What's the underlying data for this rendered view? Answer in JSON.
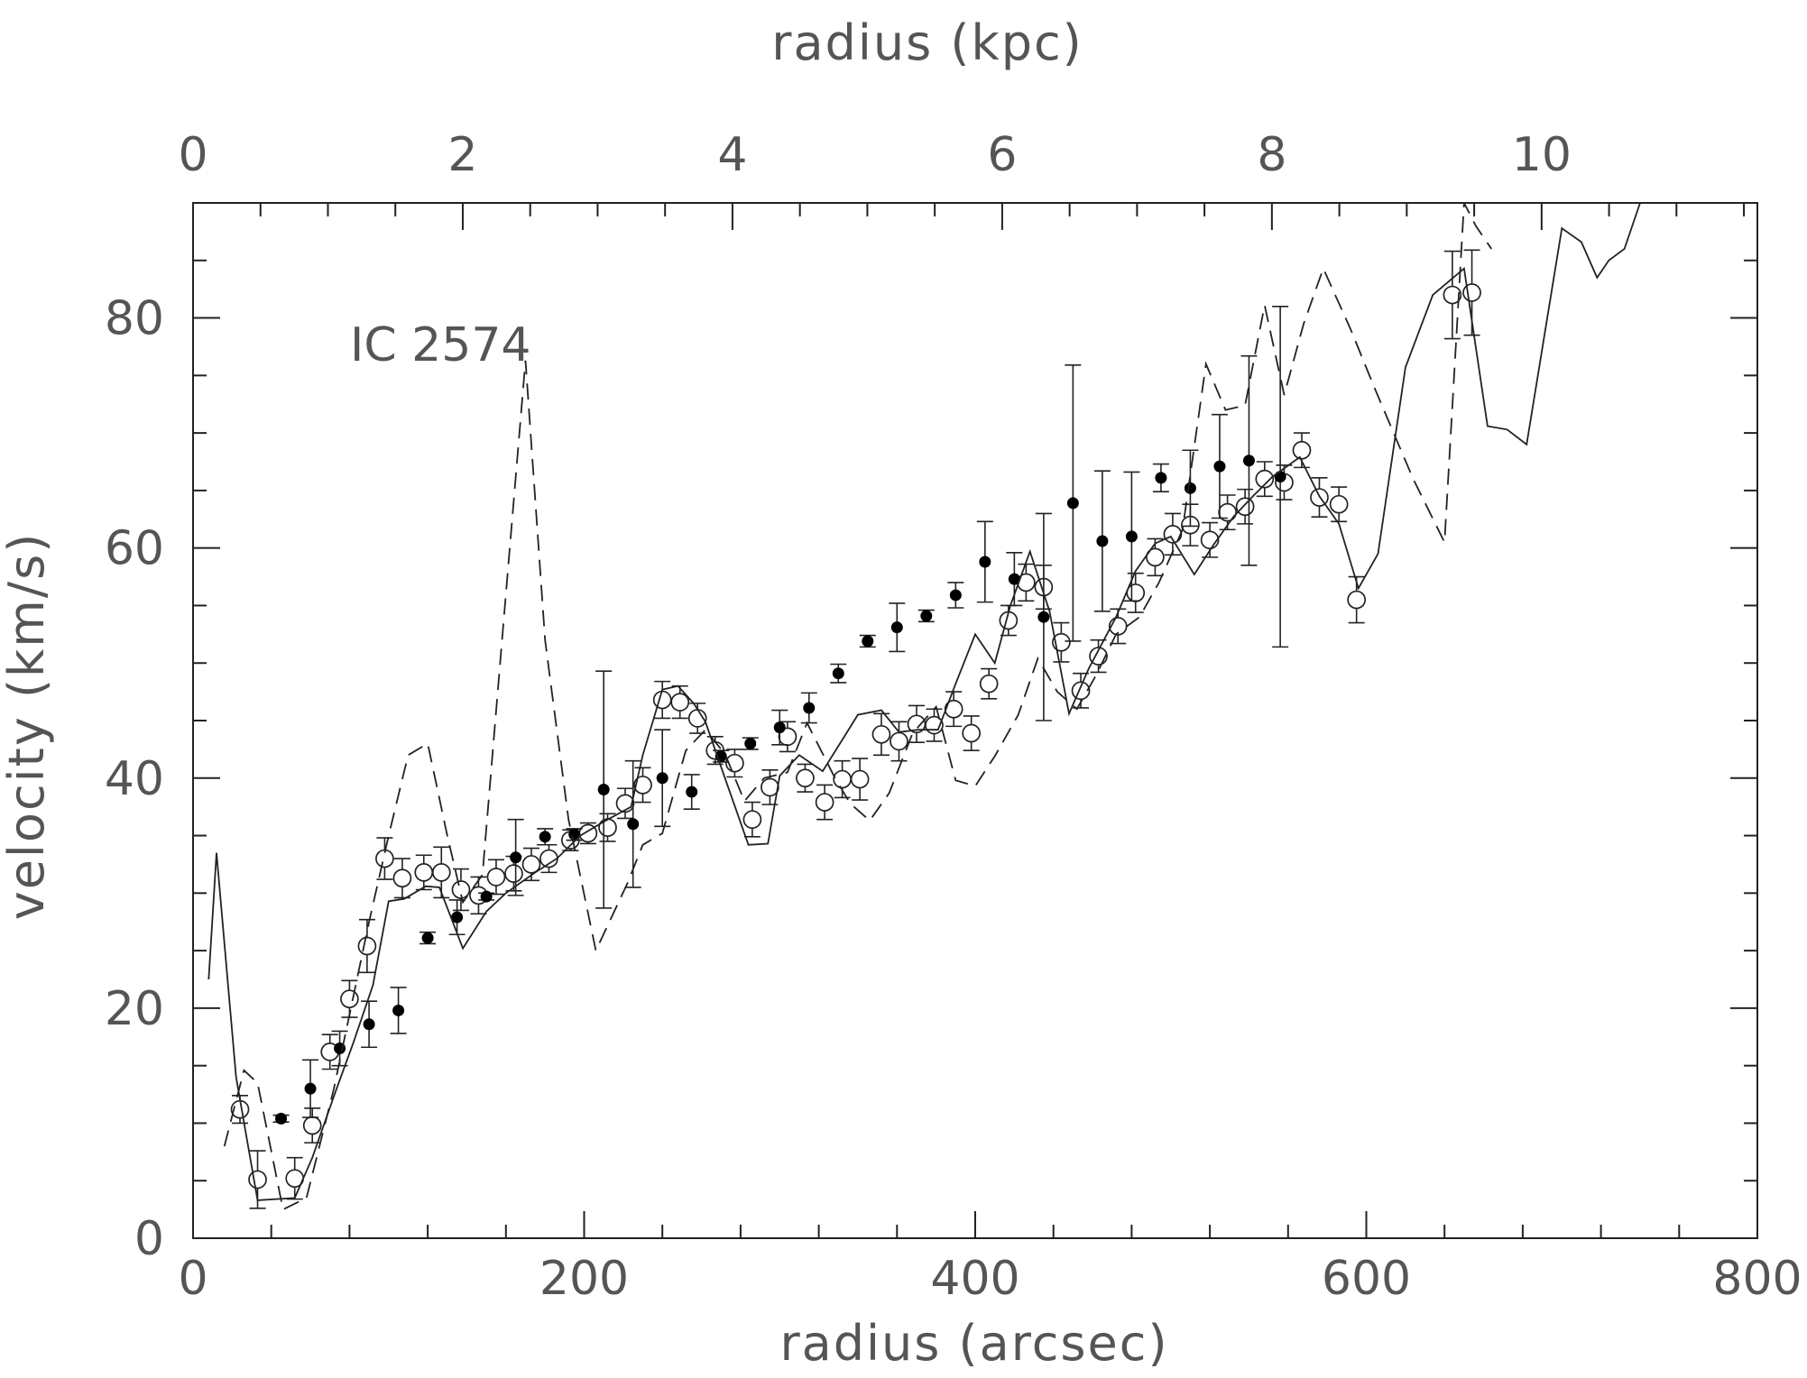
{
  "chart_data": {
    "type": "scatter",
    "title": "",
    "annotation": "IC 2574",
    "xlabel": "radius (arcsec)",
    "ylabel": "velocity (km/s)",
    "x2label": "radius (kpc)",
    "xlim": [
      0,
      800
    ],
    "ylim": [
      0,
      90
    ],
    "x2lim": [
      0,
      11.6
    ],
    "xticks": [
      0,
      200,
      400,
      600,
      800
    ],
    "yticks": [
      0,
      20,
      40,
      60,
      80
    ],
    "x2ticks": [
      0,
      2,
      4,
      6,
      8,
      10
    ],
    "x2_unit_per_x": 0.0145,
    "grid": false,
    "legend": "none",
    "series": [
      {
        "marker": "open-circle",
        "points": [
          [
            24,
            11.2,
            1.2
          ],
          [
            33,
            5.1,
            2.5
          ],
          [
            52,
            5.2,
            1.8
          ],
          [
            61,
            9.8,
            1.5
          ],
          [
            70,
            16.2,
            1.5
          ],
          [
            80,
            20.8,
            1.6
          ],
          [
            89,
            25.4,
            2.3
          ],
          [
            98,
            33.0,
            1.8
          ],
          [
            107,
            31.3,
            1.7
          ],
          [
            118,
            31.8,
            1.5
          ],
          [
            127,
            31.8,
            2.2
          ],
          [
            137,
            30.3,
            1.8
          ],
          [
            146,
            29.8,
            1.6
          ],
          [
            155,
            31.4,
            1.5
          ],
          [
            164,
            31.7,
            1.5
          ],
          [
            173,
            32.5,
            1.4
          ],
          [
            182,
            33.0,
            1.2
          ],
          [
            193,
            34.6,
            0.9
          ],
          [
            202,
            35.2,
            0.9
          ],
          [
            212,
            35.7,
            1.2
          ],
          [
            221,
            37.8,
            1.3
          ],
          [
            230,
            39.4,
            1.5
          ],
          [
            240,
            46.8,
            1.6
          ],
          [
            249,
            46.6,
            1.4
          ],
          [
            258,
            45.2,
            1.3
          ],
          [
            267,
            42.4,
            1.2
          ],
          [
            277,
            41.3,
            1.2
          ],
          [
            286,
            36.4,
            1.5
          ],
          [
            295,
            39.2,
            1.5
          ],
          [
            304,
            43.6,
            1.3
          ],
          [
            313,
            40.0,
            1.2
          ],
          [
            323,
            37.9,
            1.5
          ],
          [
            332,
            39.9,
            1.6
          ],
          [
            341,
            39.9,
            1.8
          ],
          [
            352,
            43.8,
            1.8
          ],
          [
            361,
            43.2,
            1.7
          ],
          [
            370,
            44.7,
            1.6
          ],
          [
            379,
            44.6,
            1.4
          ],
          [
            389,
            46.0,
            1.5
          ],
          [
            398,
            43.9,
            1.5
          ],
          [
            407,
            48.2,
            1.3
          ],
          [
            417,
            53.7,
            1.3
          ],
          [
            426,
            57.0,
            1.6
          ],
          [
            435,
            56.6,
            1.9
          ],
          [
            444,
            51.8,
            1.7
          ],
          [
            454,
            47.6,
            1.5
          ],
          [
            463,
            50.6,
            1.4
          ],
          [
            473,
            53.2,
            1.5
          ],
          [
            482,
            56.1,
            1.7
          ],
          [
            492,
            59.2,
            1.6
          ],
          [
            501,
            61.2,
            1.8
          ],
          [
            510,
            62.0,
            1.8
          ],
          [
            520,
            60.7,
            1.5
          ],
          [
            529,
            63.1,
            1.5
          ],
          [
            538,
            63.6,
            1.5
          ],
          [
            548,
            66.0,
            1.5
          ],
          [
            558,
            65.7,
            1.5
          ],
          [
            567,
            68.5,
            1.5
          ],
          [
            576,
            64.4,
            1.7
          ],
          [
            586,
            63.8,
            1.5
          ],
          [
            595,
            55.5,
            2.0
          ],
          [
            644,
            82.0,
            3.8
          ],
          [
            654,
            82.2,
            3.7
          ]
        ]
      },
      {
        "marker": "filled-circle",
        "points": [
          [
            45,
            10.4,
            0.3
          ],
          [
            60,
            13.0,
            2.5
          ],
          [
            75,
            16.5,
            1.5
          ],
          [
            90,
            18.6,
            2.0
          ],
          [
            105,
            19.8,
            2.0
          ],
          [
            120,
            26.1,
            0.5
          ],
          [
            135,
            27.9,
            1.5
          ],
          [
            150,
            29.7,
            0.3
          ],
          [
            165,
            33.1,
            3.3
          ],
          [
            180,
            34.9,
            0.7
          ],
          [
            195,
            35.1,
            0.5
          ],
          [
            210,
            39.0,
            10.3
          ],
          [
            225,
            36.0,
            5.5
          ],
          [
            240,
            40.0,
            4.2
          ],
          [
            255,
            38.8,
            1.5
          ],
          [
            270,
            41.9,
            0.5
          ],
          [
            285,
            43.0,
            0.5
          ],
          [
            300,
            44.4,
            1.5
          ],
          [
            315,
            46.1,
            1.3
          ],
          [
            330,
            49.1,
            0.8
          ],
          [
            345,
            51.9,
            0.5
          ],
          [
            360,
            53.1,
            2.1
          ],
          [
            375,
            54.1,
            0.5
          ],
          [
            390,
            55.9,
            1.1
          ],
          [
            405,
            58.8,
            3.5
          ],
          [
            420,
            57.3,
            2.3
          ],
          [
            435,
            54.0,
            9.0
          ],
          [
            450,
            63.9,
            12.0
          ],
          [
            465,
            60.6,
            6.1
          ],
          [
            480,
            61.0,
            5.6
          ],
          [
            495,
            66.1,
            1.2
          ],
          [
            510,
            65.2,
            3.3
          ],
          [
            525,
            67.1,
            4.5
          ],
          [
            540,
            67.6,
            9.1
          ],
          [
            556,
            66.2,
            14.8
          ]
        ]
      },
      {
        "style": "solid",
        "x": [
          8,
          12,
          22,
          33,
          52,
          61,
          73,
          82,
          92,
          100,
          108,
          119,
          126,
          138,
          150,
          160,
          175,
          186,
          198,
          210,
          224,
          230,
          240,
          248,
          256,
          262,
          272,
          284,
          294,
          300,
          310,
          322,
          333,
          340,
          352,
          361,
          371,
          381,
          390,
          400,
          410,
          418,
          428,
          438,
          448,
          458,
          472,
          482,
          492,
          500,
          512,
          522,
          532,
          542,
          552,
          566,
          576,
          586,
          596,
          606,
          620,
          634,
          650,
          662,
          672,
          682,
          700,
          710,
          718,
          724,
          732,
          740
        ],
        "y": [
          22.5,
          33.5,
          14,
          3.3,
          3.5,
          7,
          12.8,
          17,
          22,
          29.3,
          29.5,
          30.6,
          30.5,
          25.2,
          28.4,
          30,
          31.8,
          33,
          35,
          36.2,
          37.5,
          42,
          47.7,
          48,
          46.5,
          44.9,
          40,
          34.2,
          34.3,
          40.2,
          42,
          40.6,
          43.6,
          45.5,
          45.9,
          44,
          44.2,
          44.2,
          48.2,
          52.5,
          50,
          55,
          59.7,
          54.5,
          45.6,
          49.5,
          54,
          58,
          60.4,
          61,
          57.7,
          60.3,
          62.7,
          64.5,
          66.2,
          67.9,
          64.5,
          62.1,
          56.5,
          59.5,
          75.7,
          82,
          84.3,
          70.6,
          70.3,
          69,
          87.8,
          86.6,
          83.5,
          85,
          86,
          90
        ]
      },
      {
        "style": "dashed",
        "x": [
          16,
          26,
          33,
          46,
          58,
          72,
          90,
          100,
          110,
          120,
          130,
          138,
          148,
          158,
          170,
          180,
          192,
          206,
          222,
          230,
          240,
          252,
          262,
          272,
          282,
          292,
          304,
          314,
          328,
          336,
          346,
          356,
          368,
          380,
          390,
          400,
          410,
          422,
          432,
          442,
          452,
          462,
          472,
          484,
          494,
          506,
          518,
          528,
          538,
          548,
          558,
          568,
          578,
          592,
          604,
          614,
          624,
          640,
          650,
          656,
          664
        ],
        "y": [
          8,
          14.6,
          13.5,
          2.5,
          3.5,
          13,
          27.5,
          35,
          42,
          43,
          35,
          29.2,
          31.6,
          52,
          76.3,
          52,
          36.4,
          25,
          30.8,
          34.2,
          35.2,
          42.4,
          44.2,
          42.1,
          38,
          40,
          40.5,
          44.8,
          40.1,
          37.8,
          36.3,
          38.7,
          43.9,
          46.2,
          39.8,
          39.3,
          41.9,
          45.5,
          50.4,
          47.5,
          46,
          49,
          52.5,
          54,
          57,
          61.6,
          76,
          72,
          72.4,
          81.1,
          73.3,
          79.5,
          84.3,
          79,
          74,
          70,
          66,
          60.5,
          90,
          88,
          86
        ]
      }
    ]
  }
}
